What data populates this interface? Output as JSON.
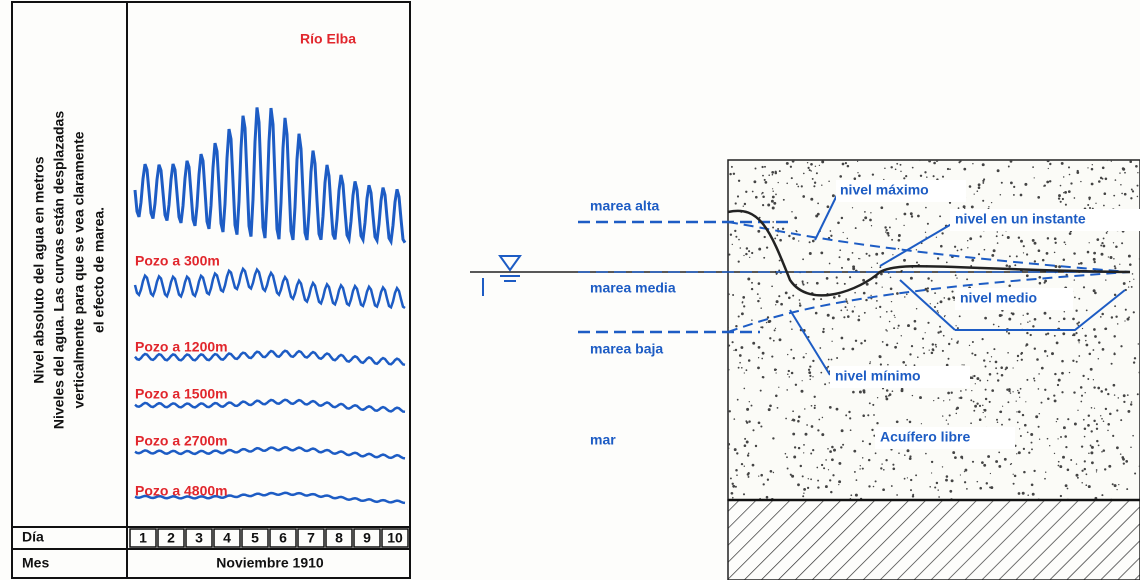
{
  "left_figure": {
    "y_label": [
      "Nivel absoluto del agua en metros",
      "Niveles del agua. Las curvas están desplazadas",
      "verticalmente para que se vea claramente",
      "el efecto de marea."
    ],
    "curves": [
      "Río Elba",
      "Pozo a 300m",
      "Pozo a 1200m",
      "Pozo a 1500m",
      "Pozo a 2700m",
      "Pozo a 4800m"
    ],
    "day_label": "Día",
    "days": [
      1,
      2,
      3,
      4,
      5,
      6,
      7,
      8,
      9,
      10
    ],
    "month_label": "Mes",
    "month": "Noviembre 1910"
  },
  "right_diagram": {
    "labels": {
      "high_tide": "marea alta",
      "mean_tide": "marea media",
      "low_tide": "marea baja",
      "sea": "mar",
      "max_level": "nivel máximo",
      "instant_level": "nivel en un instante",
      "mean_level": "nivel medio",
      "min_level": "nivel mínimo",
      "aquifer": "Acuífero libre"
    }
  }
}
